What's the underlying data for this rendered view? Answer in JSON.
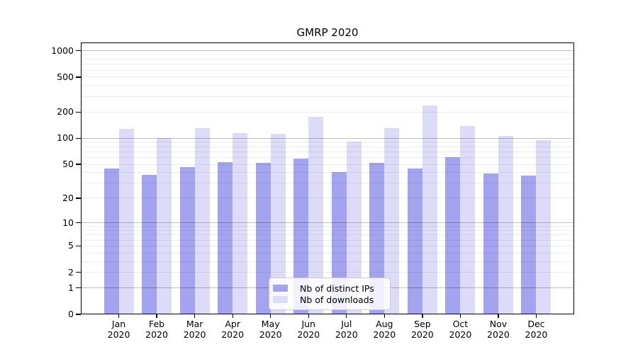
{
  "chart_data": {
    "type": "bar",
    "title": "GMRP 2020",
    "categories": [
      "Jan",
      "Feb",
      "Mar",
      "Apr",
      "May",
      "Jun",
      "Jul",
      "Aug",
      "Sep",
      "Oct",
      "Nov",
      "Dec"
    ],
    "x_axis": {
      "year_label": "2020"
    },
    "y_axis": {
      "scale": "symlog",
      "min": 0,
      "max": 1240,
      "ticks": [
        0,
        1,
        2,
        5,
        10,
        20,
        50,
        100,
        200,
        500,
        1000
      ]
    },
    "grid": {
      "major_values": [
        1,
        10,
        100,
        1000
      ],
      "minor_values": [
        2,
        3,
        4,
        5,
        6,
        7,
        8,
        9,
        20,
        30,
        40,
        50,
        60,
        70,
        80,
        90,
        200,
        300,
        400,
        500,
        600,
        700,
        800,
        900
      ],
      "major_color": "rgba(0,0,0,0.25)",
      "minor_color": "rgba(0,0,0,0.07)"
    },
    "series": [
      {
        "name": "Nb of distinct IPs",
        "color": "#a3a3f0",
        "values": [
          45,
          38,
          46,
          53,
          52,
          58,
          41,
          52,
          45,
          60,
          39,
          37
        ]
      },
      {
        "name": "Nb of downloads",
        "color": "#dcdcf8",
        "values": [
          128,
          100,
          131,
          114,
          113,
          176,
          91,
          131,
          237,
          138,
          106,
          95
        ]
      }
    ],
    "legend_position": "lower center"
  }
}
